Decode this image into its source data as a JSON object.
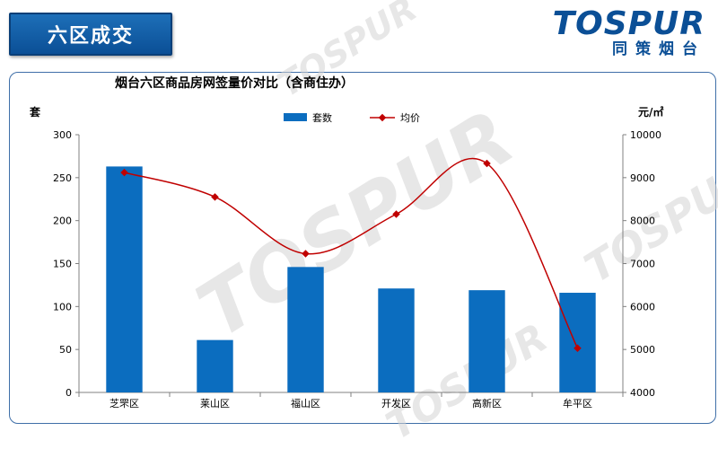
{
  "header": {
    "section_title": "六区成交",
    "logo_text": "TOSPUR",
    "logo_cn": "同策烟台"
  },
  "colors": {
    "bar": "#0b6dbf",
    "line": "#c00000",
    "title_bg": "#0b4f96",
    "frame": "#3f6fa8"
  },
  "chart_data": {
    "type": "bar",
    "title": "烟台六区商品房网签量价对比（含商住办）",
    "categories": [
      "芝罘区",
      "莱山区",
      "福山区",
      "开发区",
      "高新区",
      "牟平区"
    ],
    "series": [
      {
        "name": "套数",
        "type": "bar",
        "axis": "left",
        "values": [
          263,
          61,
          146,
          121,
          119,
          116
        ]
      },
      {
        "name": "均价",
        "type": "line",
        "axis": "right",
        "values": [
          9120,
          8550,
          7230,
          8150,
          9330,
          5030
        ]
      }
    ],
    "ylabel_left": "套",
    "ylabel_right": "元/㎡",
    "ylim_left": [
      0,
      300
    ],
    "ylim_right": [
      4000,
      10000
    ],
    "yticks_left": [
      0,
      50,
      100,
      150,
      200,
      250,
      300
    ],
    "yticks_right": [
      4000,
      5000,
      6000,
      7000,
      8000,
      9000,
      10000
    ],
    "legend_position": "top",
    "grid": false
  }
}
